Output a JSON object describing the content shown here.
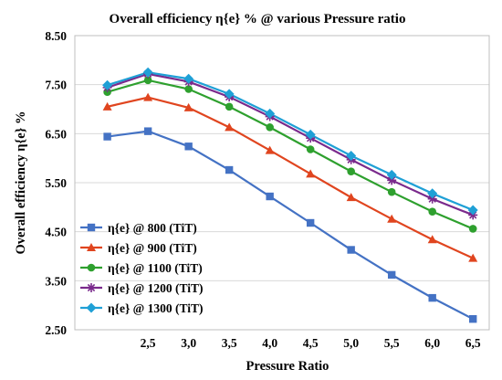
{
  "chart_data": {
    "type": "line",
    "title": "Overall  efficiency η{e} % @  various Pressure ratio",
    "xlabel": "Pressure  Ratio",
    "ylabel": "Overall  efficiency η{e} %",
    "x": [
      2.0,
      2.5,
      3.0,
      3.5,
      4.0,
      4.5,
      5.0,
      5.5,
      6.0,
      6.5
    ],
    "x_tick_labels": [
      "2,5",
      "3,0",
      "3,5",
      "4,0",
      "4,5",
      "5,0",
      "5,5",
      "6,0",
      "6,5"
    ],
    "x_tick_values": [
      2.5,
      3.0,
      3.5,
      4.0,
      4.5,
      5.0,
      5.5,
      6.0,
      6.5
    ],
    "y_tick_labels": [
      "2.50",
      "3.50",
      "4.50",
      "5.50",
      "6.50",
      "7.50",
      "8.50"
    ],
    "y_tick_values": [
      2.5,
      3.5,
      4.5,
      5.5,
      6.5,
      7.5,
      8.5
    ],
    "xlim": [
      1.6,
      6.7
    ],
    "ylim": [
      2.5,
      8.5
    ],
    "grid": "horizontal",
    "legend_position": "bottom-left",
    "series": [
      {
        "name": "η{e}  @ 800 (TiT)",
        "color": "#4472C4",
        "marker": "square",
        "values": [
          6.44,
          6.55,
          6.24,
          5.76,
          5.22,
          4.68,
          4.13,
          3.62,
          3.15,
          2.72
        ]
      },
      {
        "name": "η{e}  @ 900 (TiT)",
        "color": "#E0451F",
        "marker": "triangle",
        "values": [
          7.05,
          7.24,
          7.03,
          6.63,
          6.16,
          5.68,
          5.2,
          4.76,
          4.34,
          3.96
        ]
      },
      {
        "name": "η{e}  @ 1100 (TiT)",
        "color": "#2EA02E",
        "marker": "circle",
        "values": [
          7.35,
          7.59,
          7.41,
          7.05,
          6.63,
          6.18,
          5.73,
          5.31,
          4.91,
          4.56
        ]
      },
      {
        "name": "η{e}  @ 1200 (TiT)",
        "color": "#7A2A8C",
        "marker": "star",
        "values": [
          7.44,
          7.72,
          7.56,
          7.25,
          6.85,
          6.41,
          5.97,
          5.55,
          5.17,
          4.84
        ]
      },
      {
        "name": "η{e}  @ 1300 (TiT)",
        "color": "#1FA0D6",
        "marker": "diamond",
        "values": [
          7.49,
          7.75,
          7.62,
          7.31,
          6.91,
          6.48,
          6.05,
          5.66,
          5.28,
          4.94
        ]
      }
    ]
  }
}
